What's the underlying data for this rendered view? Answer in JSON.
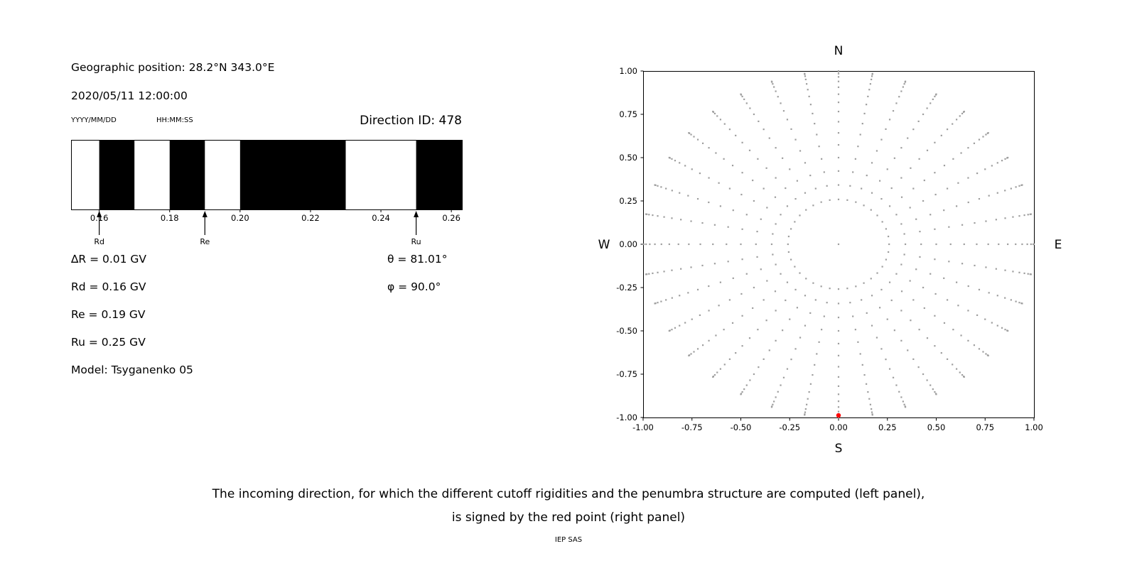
{
  "colors": {
    "background": "#ffffff",
    "text": "#000000",
    "band": "#000000",
    "dot": "#9e9e9e",
    "red": "#ff0000"
  },
  "header": {
    "geo_position": "Geographic position: 28.2°N 343.0°E",
    "datetime": "2020/05/11 12:00:00",
    "date_format_label": "YYYY/MM/DD",
    "time_format_label": "HH:MM:SS",
    "direction_id": "Direction ID: 478"
  },
  "cutoff_info": {
    "delta_r": "∆R = 0.01 GV",
    "rd": "Rd = 0.16 GV",
    "re": "Re = 0.19 GV",
    "ru": "Ru = 0.25 GV",
    "model": "Model: Tsyganenko 05",
    "theta": "θ = 81.01°",
    "phi": "φ = 90.0°"
  },
  "caption": {
    "line1": "The incoming direction, for which the different cutoff rigidities and the penumbra structure are computed (left panel),",
    "line2": "is signed by the red point (right panel)",
    "credit": "IEP SAS"
  },
  "chart_data": [
    {
      "type": "bar",
      "name": "penumbra-structure",
      "description": "Cosmic-ray penumbra: black bands are forbidden rigidity intervals (GV), white regions are allowed",
      "xlim": [
        0.152,
        0.263
      ],
      "xtick_values": [
        0.16,
        0.18,
        0.2,
        0.22,
        0.24,
        0.26
      ],
      "xtick_labels": [
        "0.16",
        "0.18",
        "0.20",
        "0.22",
        "0.24",
        "0.26"
      ],
      "forbidden_bands_gv": [
        [
          0.16,
          0.17
        ],
        [
          0.18,
          0.19
        ],
        [
          0.2,
          0.23
        ],
        [
          0.25,
          0.263
        ]
      ],
      "markers": [
        {
          "label": "Rd",
          "value_gv": 0.16
        },
        {
          "label": "Re",
          "value_gv": 0.19
        },
        {
          "label": "Ru",
          "value_gv": 0.25
        }
      ]
    },
    {
      "type": "scatter",
      "name": "incoming-direction-map",
      "xlim": [
        -1.0,
        1.0
      ],
      "ylim": [
        -1.0,
        1.0
      ],
      "xtick_values": [
        -1.0,
        -0.75,
        -0.5,
        -0.25,
        0,
        0.25,
        0.5,
        0.75,
        1.0
      ],
      "xtick_labels": [
        "-1.00",
        "-0.75",
        "-0.50",
        "-0.25",
        "0.00",
        "0.25",
        "0.50",
        "0.75",
        "1.00"
      ],
      "ytick_values": [
        1.0,
        0.75,
        0.5,
        0.25,
        0,
        -0.25,
        -0.5,
        -0.75,
        -1.0
      ],
      "ytick_labels": [
        "1.00",
        "0.75",
        "0.50",
        "0.25",
        "0.00",
        "-0.25",
        "-0.50",
        "-0.75",
        "-1.00"
      ],
      "compass": {
        "top": "N",
        "bottom": "S",
        "left": "W",
        "right": "E"
      },
      "grid": false,
      "gray_points": {
        "layout": "radial grid of incoming directions: 36 azimuth spokes, dots at radius sin(zenith)",
        "azimuth_start_deg": 0,
        "azimuth_step_deg": 10,
        "azimuth_count": 36,
        "zenith_start_deg": 15,
        "zenith_step_deg": 5,
        "zenith_end_deg": 90,
        "radius_rule": "sin(zenith)",
        "center_point": true
      },
      "red_point": {
        "x": 0.0,
        "y": -0.988,
        "theta_deg": 81.01,
        "phi_deg": 90.0
      }
    }
  ]
}
